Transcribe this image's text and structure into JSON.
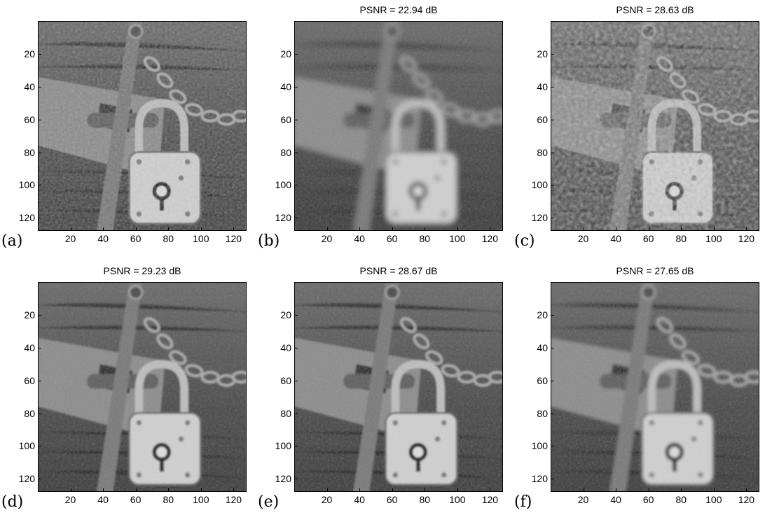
{
  "figure": {
    "panels": [
      {
        "id": "a",
        "letter": "(a)",
        "title": "",
        "variant": "original"
      },
      {
        "id": "b",
        "letter": "(b)",
        "title": "PSNR = 22.94 dB",
        "variant": "blocky"
      },
      {
        "id": "c",
        "letter": "(c)",
        "title": "PSNR = 28.63 dB",
        "variant": "noisy"
      },
      {
        "id": "d",
        "letter": "(d)",
        "title": "PSNR = 29.23 dB",
        "variant": "smooth"
      },
      {
        "id": "e",
        "letter": "(e)",
        "title": "PSNR = 28.67 dB",
        "variant": "smooth"
      },
      {
        "id": "f",
        "letter": "(f)",
        "title": "PSNR = 27.65 dB",
        "variant": "painted"
      }
    ],
    "y_ticks": [
      "20",
      "40",
      "60",
      "80",
      "100",
      "120"
    ],
    "x_ticks": [
      "20",
      "40",
      "60",
      "80",
      "100",
      "120"
    ],
    "axis_range": [
      0,
      128
    ],
    "colors": {
      "background": "#ffffff",
      "axis": "#000000"
    }
  }
}
